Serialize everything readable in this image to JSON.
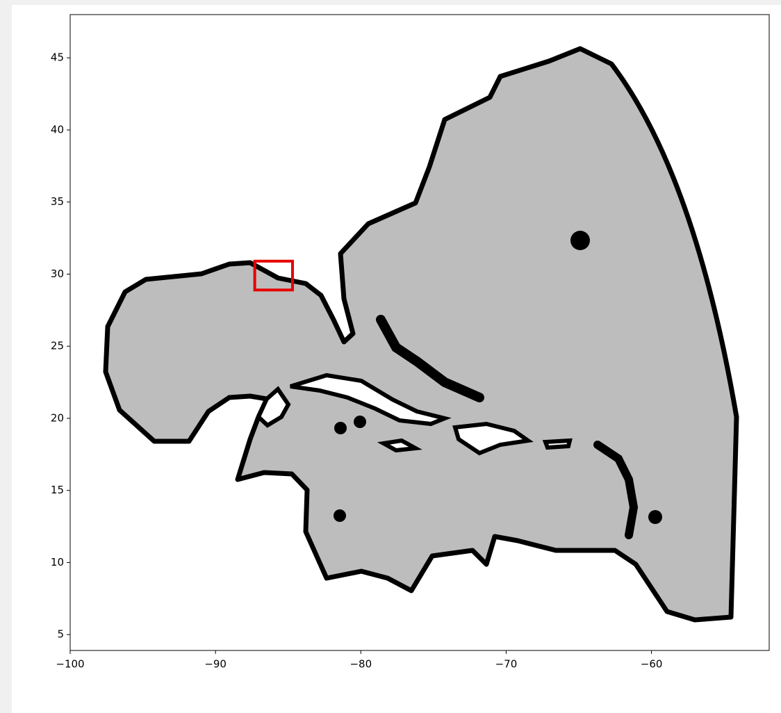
{
  "chart_data": {
    "type": "mesh",
    "xlim": [
      -100,
      -51.9
    ],
    "ylim": [
      3.9,
      48
    ],
    "xticks": [
      {
        "value": -100,
        "label": "−100"
      },
      {
        "value": -90,
        "label": "−90"
      },
      {
        "value": -80,
        "label": "−80"
      },
      {
        "value": -70,
        "label": "−70"
      },
      {
        "value": -60,
        "label": "−60"
      }
    ],
    "yticks": [
      5,
      10,
      15,
      20,
      25,
      30,
      35,
      40,
      45
    ],
    "grid": false,
    "highlight_box": {
      "xlim": [
        -87.3,
        -84.7
      ],
      "ylim": [
        28.9,
        30.9
      ],
      "color": "#e60000"
    }
  }
}
